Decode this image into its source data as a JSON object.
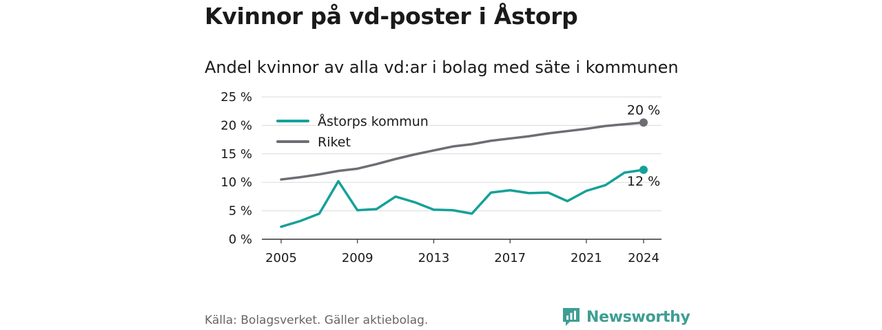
{
  "title": "Kvinnor på vd-poster i Åstorp",
  "subtitle": "Andel kvinnor av alla vd:ar i bolag med säte i kommunen",
  "source": "Källa: Bolagsverket. Gäller aktiebolag.",
  "logo_text": "Newsworthy",
  "colors": {
    "astorp": "#14a198",
    "riket": "#6e6d73",
    "grid": "#d9d9d9",
    "brand": "#3f9e93"
  },
  "chart_data": {
    "type": "line",
    "title": "Kvinnor på vd-poster i Åstorp",
    "subtitle": "Andel kvinnor av alla vd:ar i bolag med säte i kommunen",
    "xlabel": "",
    "ylabel": "",
    "x": [
      2005,
      2006,
      2007,
      2008,
      2009,
      2010,
      2011,
      2012,
      2013,
      2014,
      2015,
      2016,
      2017,
      2018,
      2019,
      2020,
      2021,
      2022,
      2023,
      2024
    ],
    "x_ticks": [
      2005,
      2009,
      2013,
      2017,
      2021,
      2024
    ],
    "y_ticks": [
      0,
      5,
      10,
      15,
      20,
      25
    ],
    "y_tick_labels": [
      "0 %",
      "5 %",
      "10 %",
      "15 %",
      "20 %",
      "25 %"
    ],
    "ylim": [
      0,
      25
    ],
    "grid": true,
    "legend_position": "top-left",
    "series": [
      {
        "name": "Åstorps kommun",
        "color": "#14a198",
        "values": [
          2.2,
          3.2,
          4.5,
          10.2,
          5.1,
          5.3,
          7.5,
          6.5,
          5.2,
          5.1,
          4.5,
          8.2,
          8.6,
          8.1,
          8.2,
          6.7,
          8.5,
          9.5,
          11.7,
          12.2
        ],
        "end_label": "12 %"
      },
      {
        "name": "Riket",
        "color": "#6e6d73",
        "values": [
          10.5,
          10.9,
          11.4,
          12.0,
          12.4,
          13.2,
          14.1,
          14.9,
          15.6,
          16.3,
          16.7,
          17.3,
          17.7,
          18.1,
          18.6,
          19.0,
          19.4,
          19.9,
          20.2,
          20.5
        ],
        "end_label": "20 %"
      }
    ]
  }
}
